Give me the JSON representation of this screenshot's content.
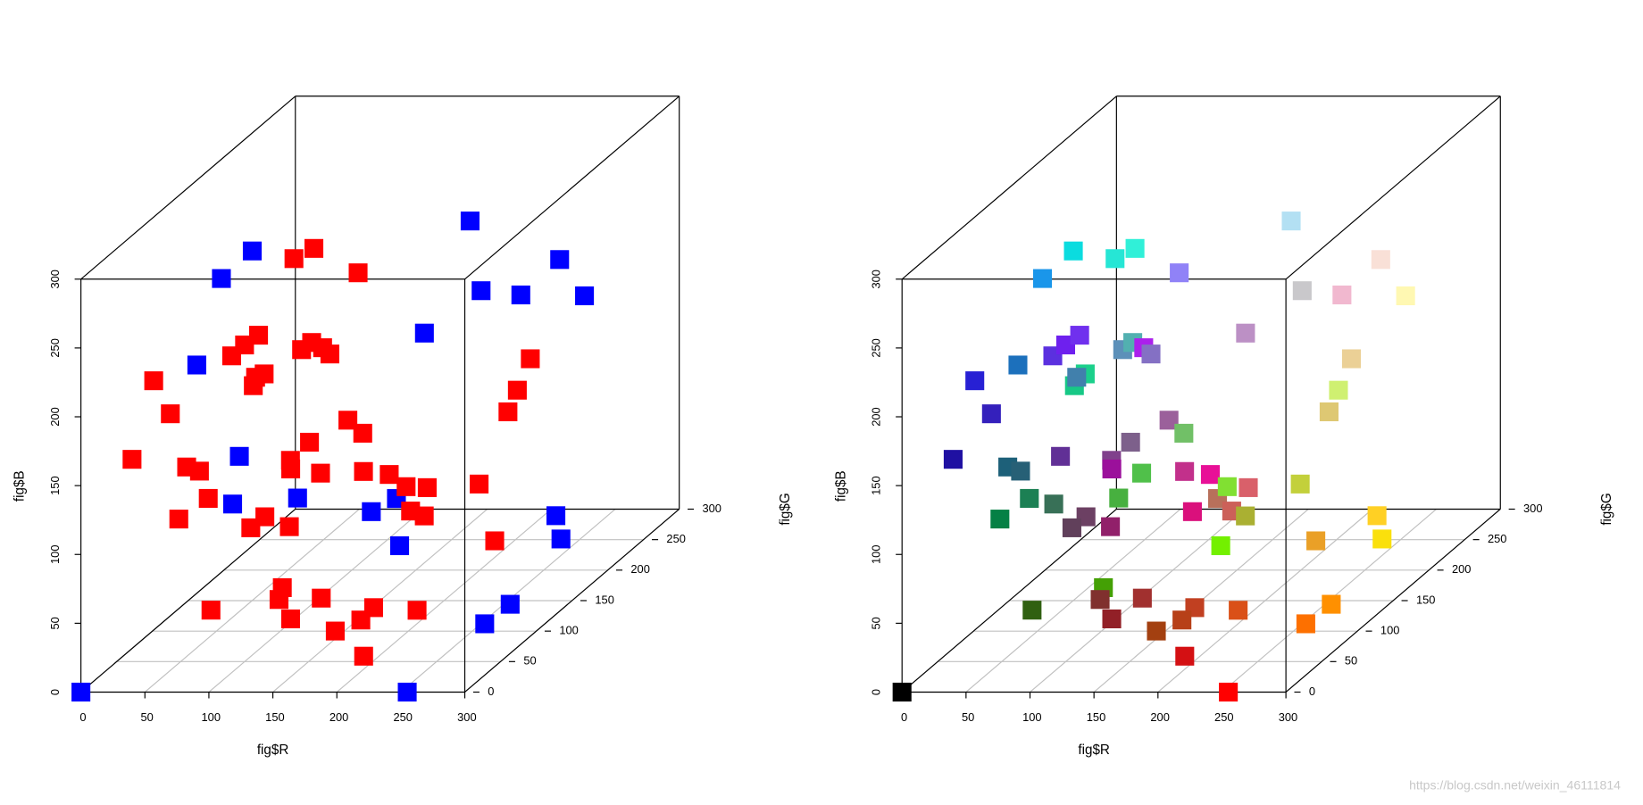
{
  "chart_data": [
    {
      "type": "scatter3d",
      "xlabel": "fig$R",
      "ylabel": "fig$G",
      "zlabel": "fig$B",
      "xlim": [
        0,
        300
      ],
      "ylim": [
        0,
        300
      ],
      "zlim": [
        0,
        300
      ],
      "xticks": [
        0,
        50,
        100,
        150,
        200,
        250,
        300
      ],
      "yticks": [
        0,
        50,
        100,
        150,
        200,
        250,
        300
      ],
      "zticks": [
        0,
        50,
        100,
        150,
        200,
        250,
        300
      ],
      "grid": true,
      "series": [
        {
          "color": "#0000ff",
          "x": [
            0,
            255,
            11,
            26,
            179,
            201,
            249,
            241,
            255,
            188,
            255,
            250,
            255,
            253,
            28,
            97,
            184,
            218,
            115,
            56,
            71
          ],
          "y": [
            0,
            0,
            220,
            150,
            224,
            200,
            224,
            184,
            248,
            144,
            208,
            224,
            144,
            112,
            112,
            48,
            112,
            16,
            240,
            112,
            176
          ],
          "z": [
            0,
            0,
            223,
            234,
            243,
            203,
            215,
            207,
            178,
            197,
            36,
            12,
            0,
            0,
            188,
            150,
            91,
            124,
            0,
            87,
            63
          ]
        },
        {
          "color": "#ff0000",
          "x": [
            38,
            48,
            144,
            235,
            207,
            222,
            195,
            234,
            39,
            52,
            31,
            91,
            110,
            112,
            27,
            23,
            65,
            92,
            82,
            171,
            132,
            155,
            113,
            125,
            128,
            155,
            80,
            194,
            232,
            129,
            217,
            204,
            170,
            29,
            39,
            28,
            5,
            108,
            97,
            145,
            68,
            48,
            128,
            161,
            146,
            163,
            193,
            183,
            218,
            212
          ],
          "y": [
            230,
            240,
            130,
            208,
            240,
            200,
            208,
            160,
            32,
            32,
            16,
            48,
            32,
            48,
            208,
            200,
            128,
            144,
            176,
            32,
            112,
            96,
            192,
            96,
            64,
            16,
            192,
            48,
            16,
            224,
            96,
            96,
            176,
            96,
            96,
            128,
            128,
            64,
            64,
            32,
            160,
            96,
            48,
            48,
            32,
            64,
            64,
            64,
            80,
            16
          ],
          "z": [
            213,
            216,
            247,
            150,
            113,
            115,
            59,
            39,
            212,
            188,
            162,
            223,
            238,
            238,
            139,
            134,
            172,
            185,
            176,
            236,
            196,
            155,
            103,
            139,
            140,
            155,
            74,
            139,
            151,
            50,
            106,
            89,
            50,
            121,
            118,
            84,
            69,
            99,
            91,
            106,
            5,
            17,
            46,
            47,
            39,
            16,
            33,
            24,
            24,
            19
          ]
        }
      ]
    },
    {
      "type": "scatter3d",
      "xlabel": "fig$R",
      "ylabel": "fig$G",
      "zlabel": "fig$B",
      "xlim": [
        0,
        300
      ],
      "ylim": [
        0,
        300
      ],
      "zlim": [
        0,
        300
      ],
      "xticks": [
        0,
        50,
        100,
        150,
        200,
        250,
        300
      ],
      "yticks": [
        0,
        50,
        100,
        150,
        200,
        250,
        300
      ],
      "zticks": [
        0,
        50,
        100,
        150,
        200,
        250,
        300
      ],
      "grid": true,
      "color_by": "rgb",
      "series": [
        {
          "x": [
            0,
            255,
            11,
            26,
            179,
            201,
            249,
            241,
            255,
            188,
            255,
            250,
            255,
            253,
            28,
            97,
            184,
            218,
            115,
            56,
            71,
            38,
            48,
            144,
            235,
            207,
            222,
            195,
            234,
            39,
            52,
            31,
            91,
            110,
            112,
            27,
            23,
            65,
            92,
            82,
            171,
            132,
            155,
            113,
            125,
            128,
            155,
            80,
            194,
            232,
            129,
            217,
            204,
            170,
            29,
            39,
            28,
            5,
            108,
            97,
            145,
            68,
            48,
            128,
            161,
            146,
            163,
            193,
            183,
            218,
            212
          ],
          "y": [
            0,
            0,
            220,
            150,
            224,
            200,
            224,
            184,
            248,
            144,
            208,
            224,
            144,
            112,
            112,
            48,
            112,
            16,
            240,
            112,
            176,
            230,
            240,
            130,
            208,
            240,
            200,
            208,
            160,
            32,
            32,
            16,
            48,
            32,
            48,
            208,
            200,
            128,
            144,
            176,
            32,
            112,
            96,
            192,
            96,
            64,
            16,
            192,
            48,
            16,
            224,
            96,
            96,
            176,
            96,
            96,
            128,
            128,
            64,
            64,
            32,
            160,
            96,
            48,
            48,
            32,
            64,
            64,
            64,
            80,
            16
          ],
          "z": [
            0,
            0,
            223,
            234,
            243,
            203,
            215,
            207,
            178,
            197,
            36,
            12,
            0,
            0,
            188,
            150,
            91,
            124,
            0,
            87,
            63,
            213,
            216,
            247,
            150,
            113,
            115,
            59,
            39,
            212,
            188,
            162,
            223,
            238,
            238,
            139,
            134,
            172,
            185,
            176,
            236,
            196,
            155,
            103,
            139,
            140,
            155,
            74,
            139,
            151,
            50,
            106,
            89,
            50,
            121,
            118,
            84,
            69,
            99,
            91,
            106,
            5,
            17,
            46,
            47,
            39,
            16,
            33,
            24,
            24,
            19
          ]
        }
      ]
    }
  ],
  "watermark": "https://blog.csdn.net/weixin_46111814"
}
